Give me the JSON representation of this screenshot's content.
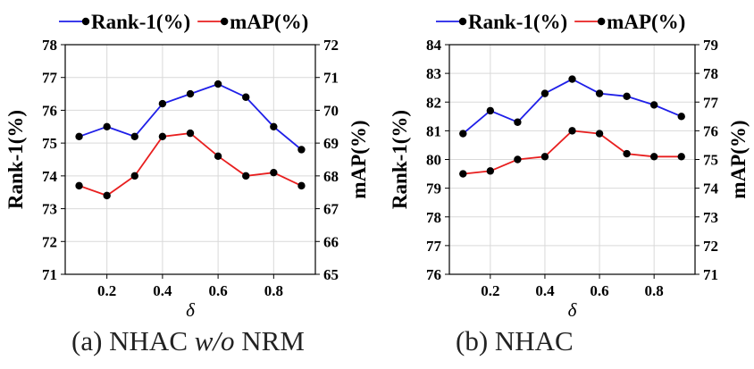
{
  "chart_data": [
    {
      "type": "line",
      "caption": {
        "prefix": "(a) NHAC ",
        "italic": "w/o",
        "suffix": " NRM"
      },
      "x": [
        0.1,
        0.2,
        0.3,
        0.4,
        0.5,
        0.6,
        0.7,
        0.8,
        0.9
      ],
      "xticks": [
        "0.2",
        "0.4",
        "0.6",
        "0.8"
      ],
      "xlabel": "δ",
      "ylabel": "Rank-1(%)",
      "ylabel_right": "mAP(%)",
      "ylim": [
        71,
        78
      ],
      "ylim_right": [
        65,
        72
      ],
      "grid": true,
      "legend_position": "top",
      "series": [
        {
          "name": "Rank-1(%)",
          "axis": "left",
          "color": "#1f1fe8",
          "values": [
            75.2,
            75.5,
            75.2,
            76.2,
            76.5,
            76.8,
            76.4,
            75.5,
            74.8
          ]
        },
        {
          "name": "mAP(%)",
          "axis": "right",
          "color": "#e81f1f",
          "values": [
            67.7,
            67.4,
            68.0,
            69.2,
            69.3,
            68.6,
            68.0,
            68.1,
            67.7
          ]
        }
      ]
    },
    {
      "type": "line",
      "caption": {
        "prefix": "(b) NHAC",
        "italic": "",
        "suffix": ""
      },
      "x": [
        0.1,
        0.2,
        0.3,
        0.4,
        0.5,
        0.6,
        0.7,
        0.8,
        0.9
      ],
      "xticks": [
        "0.2",
        "0.4",
        "0.6",
        "0.8"
      ],
      "xlabel": "δ",
      "ylabel": "Rank-1(%)",
      "ylabel_right": "mAP(%)",
      "ylim": [
        76,
        84
      ],
      "ylim_right": [
        71,
        79
      ],
      "grid": true,
      "legend_position": "top",
      "series": [
        {
          "name": "Rank-1(%)",
          "axis": "left",
          "color": "#1f1fe8",
          "values": [
            80.9,
            81.7,
            81.3,
            82.3,
            82.8,
            82.3,
            82.2,
            81.9,
            81.5
          ]
        },
        {
          "name": "mAP(%)",
          "axis": "right",
          "color": "#e81f1f",
          "values": [
            74.5,
            74.6,
            75.0,
            75.1,
            76.0,
            75.9,
            75.2,
            75.1,
            75.1
          ]
        }
      ]
    }
  ]
}
